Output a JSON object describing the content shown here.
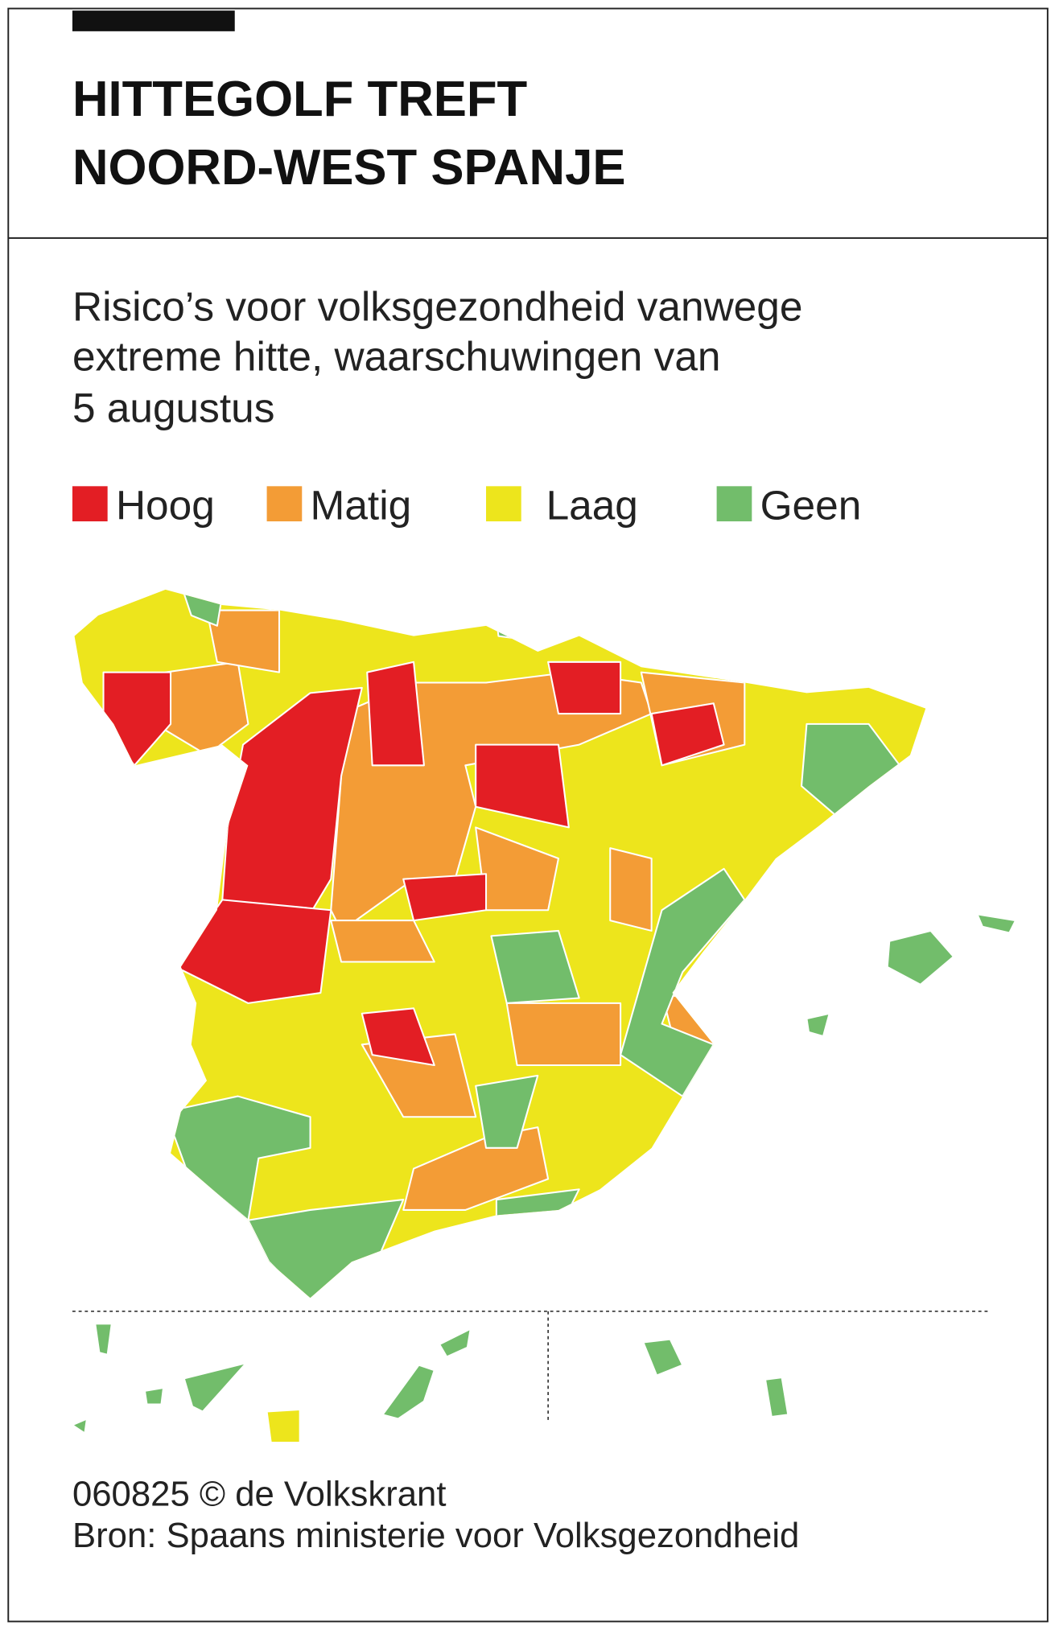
{
  "header": {
    "title": [
      "HITTEGOLF TREFT",
      "NOORD-WEST SPANJE"
    ]
  },
  "subtitle": [
    "Risico’s voor volksgezondheid vanwege",
    "extreme hitte, waarschuwingen van",
    "5 augustus"
  ],
  "legend": [
    {
      "label": "Hoog",
      "color": "#e31e24"
    },
    {
      "label": "Matig",
      "color": "#f39c36"
    },
    {
      "label": "Laag",
      "color": "#ede51c"
    },
    {
      "label": "Geen",
      "color": "#72bd6b"
    }
  ],
  "footer": [
    "060825 © de Volkskrant",
    "Bron: Spaans ministerie voor Volksgezondheid"
  ]
}
